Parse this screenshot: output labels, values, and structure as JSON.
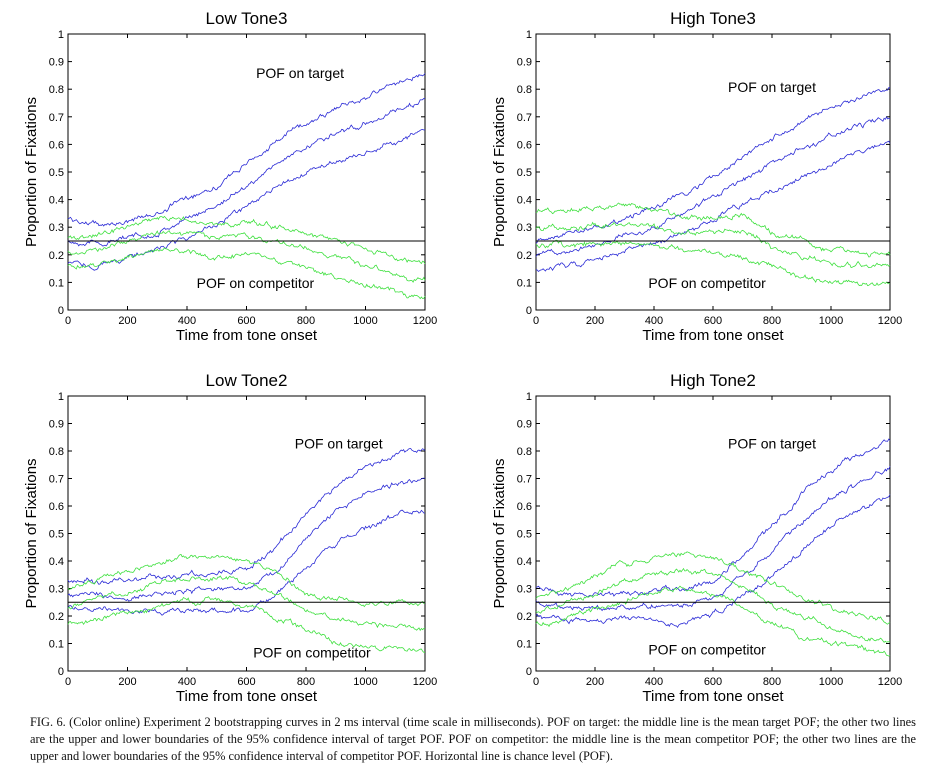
{
  "figure": {
    "caption": "FIG. 6. (Color online) Experiment 2 bootstrapping curves in 2 ms interval (time scale in milliseconds). POF on target: the middle line is the mean target POF; the other two lines are the upper and lower boundaries of the 95% confidence interval of target POF. POF on competitor: the middle line is the mean competitor POF; the other two lines are the upper and lower boundaries of the 95% confidence interval of competitor POF. Horizontal line is chance level (POF)."
  },
  "colors": {
    "target": "#2b2bd6",
    "competitor": "#3fe03f",
    "chance": "#000000",
    "axis": "#000000"
  },
  "chart_data": [
    {
      "type": "line",
      "title": "Low Tone3",
      "xlabel": "Time from tone onset",
      "ylabel": "Proportion of Fixations",
      "xlim": [
        0,
        1200
      ],
      "ylim": [
        0,
        1
      ],
      "xticks": [
        "0",
        "200",
        "400",
        "600",
        "800",
        "1000",
        "1200"
      ],
      "yticks": [
        "0",
        "0.1",
        "0.2",
        "0.3",
        "0.4",
        "0.5",
        "0.6",
        "0.7",
        "0.8",
        "0.9",
        "1"
      ],
      "chance_level": 0.25,
      "annotations": [
        {
          "text": "POF on target",
          "x": 780,
          "y": 0.84
        },
        {
          "text": "POF on competitor",
          "x": 630,
          "y": 0.08
        }
      ],
      "x": [
        0,
        100,
        200,
        300,
        400,
        500,
        600,
        700,
        800,
        900,
        1000,
        1100,
        1200
      ],
      "series": [
        {
          "group": "target",
          "role": "upper",
          "values": [
            0.33,
            0.31,
            0.32,
            0.35,
            0.41,
            0.45,
            0.53,
            0.61,
            0.68,
            0.73,
            0.77,
            0.82,
            0.86
          ]
        },
        {
          "group": "target",
          "role": "mean",
          "values": [
            0.25,
            0.24,
            0.26,
            0.28,
            0.33,
            0.38,
            0.45,
            0.53,
            0.59,
            0.64,
            0.68,
            0.72,
            0.76
          ]
        },
        {
          "group": "target",
          "role": "lower",
          "values": [
            0.17,
            0.16,
            0.19,
            0.22,
            0.26,
            0.31,
            0.37,
            0.44,
            0.5,
            0.54,
            0.57,
            0.61,
            0.66
          ]
        },
        {
          "group": "competitor",
          "role": "upper",
          "values": [
            0.26,
            0.27,
            0.3,
            0.34,
            0.33,
            0.31,
            0.32,
            0.3,
            0.28,
            0.25,
            0.22,
            0.19,
            0.17
          ]
        },
        {
          "group": "competitor",
          "role": "mean",
          "values": [
            0.21,
            0.22,
            0.25,
            0.28,
            0.28,
            0.26,
            0.27,
            0.25,
            0.22,
            0.19,
            0.16,
            0.13,
            0.11
          ]
        },
        {
          "group": "competitor",
          "role": "lower",
          "values": [
            0.16,
            0.17,
            0.19,
            0.22,
            0.21,
            0.19,
            0.2,
            0.18,
            0.15,
            0.12,
            0.09,
            0.07,
            0.05
          ]
        }
      ]
    },
    {
      "type": "line",
      "title": "High Tone3",
      "xlabel": "Time from tone onset",
      "ylabel": "Proportion of Fixations",
      "xlim": [
        0,
        1200
      ],
      "ylim": [
        0,
        1
      ],
      "xticks": [
        "0",
        "200",
        "400",
        "600",
        "800",
        "1000",
        "1200"
      ],
      "yticks": [
        "0",
        "0.1",
        "0.2",
        "0.3",
        "0.4",
        "0.5",
        "0.6",
        "0.7",
        "0.8",
        "0.9",
        "1"
      ],
      "chance_level": 0.25,
      "annotations": [
        {
          "text": "POF on target",
          "x": 800,
          "y": 0.79
        },
        {
          "text": "POF on competitor",
          "x": 580,
          "y": 0.08
        }
      ],
      "x": [
        0,
        100,
        200,
        300,
        400,
        500,
        600,
        700,
        800,
        900,
        1000,
        1100,
        1200
      ],
      "series": [
        {
          "group": "target",
          "role": "upper",
          "values": [
            0.25,
            0.28,
            0.3,
            0.33,
            0.37,
            0.42,
            0.48,
            0.55,
            0.62,
            0.68,
            0.73,
            0.77,
            0.8
          ]
        },
        {
          "group": "target",
          "role": "mean",
          "values": [
            0.2,
            0.22,
            0.24,
            0.27,
            0.3,
            0.35,
            0.41,
            0.47,
            0.53,
            0.58,
            0.63,
            0.67,
            0.7
          ]
        },
        {
          "group": "target",
          "role": "lower",
          "values": [
            0.15,
            0.16,
            0.18,
            0.21,
            0.24,
            0.28,
            0.33,
            0.38,
            0.43,
            0.48,
            0.53,
            0.57,
            0.6
          ]
        },
        {
          "group": "competitor",
          "role": "upper",
          "values": [
            0.36,
            0.36,
            0.37,
            0.38,
            0.36,
            0.33,
            0.33,
            0.35,
            0.28,
            0.25,
            0.22,
            0.21,
            0.2
          ]
        },
        {
          "group": "competitor",
          "role": "mean",
          "values": [
            0.3,
            0.3,
            0.31,
            0.31,
            0.3,
            0.28,
            0.28,
            0.29,
            0.23,
            0.19,
            0.17,
            0.16,
            0.15
          ]
        },
        {
          "group": "competitor",
          "role": "lower",
          "values": [
            0.24,
            0.23,
            0.24,
            0.24,
            0.24,
            0.22,
            0.21,
            0.19,
            0.16,
            0.12,
            0.1,
            0.1,
            0.09
          ]
        }
      ]
    },
    {
      "type": "line",
      "title": "Low Tone2",
      "xlabel": "Time from tone onset",
      "ylabel": "Proportion of Fixations",
      "xlim": [
        0,
        1200
      ],
      "ylim": [
        0,
        1
      ],
      "xticks": [
        "0",
        "200",
        "400",
        "600",
        "800",
        "1000",
        "1200"
      ],
      "yticks": [
        "0",
        "0.1",
        "0.2",
        "0.3",
        "0.4",
        "0.5",
        "0.6",
        "0.7",
        "0.8",
        "0.9",
        "1"
      ],
      "chance_level": 0.25,
      "annotations": [
        {
          "text": "POF on target",
          "x": 910,
          "y": 0.81
        },
        {
          "text": "POF on competitor",
          "x": 820,
          "y": 0.05
        }
      ],
      "x": [
        0,
        100,
        200,
        300,
        400,
        500,
        600,
        700,
        800,
        900,
        1000,
        1100,
        1200
      ],
      "series": [
        {
          "group": "target",
          "role": "upper",
          "values": [
            0.33,
            0.32,
            0.33,
            0.34,
            0.35,
            0.36,
            0.37,
            0.45,
            0.57,
            0.67,
            0.74,
            0.79,
            0.81
          ]
        },
        {
          "group": "target",
          "role": "mean",
          "values": [
            0.28,
            0.27,
            0.27,
            0.28,
            0.29,
            0.29,
            0.3,
            0.36,
            0.48,
            0.58,
            0.64,
            0.68,
            0.7
          ]
        },
        {
          "group": "target",
          "role": "lower",
          "values": [
            0.23,
            0.23,
            0.22,
            0.22,
            0.22,
            0.22,
            0.22,
            0.28,
            0.38,
            0.47,
            0.52,
            0.57,
            0.59
          ]
        },
        {
          "group": "competitor",
          "role": "upper",
          "values": [
            0.3,
            0.33,
            0.36,
            0.39,
            0.42,
            0.42,
            0.4,
            0.36,
            0.28,
            0.26,
            0.25,
            0.25,
            0.24
          ]
        },
        {
          "group": "competitor",
          "role": "mean",
          "values": [
            0.23,
            0.26,
            0.29,
            0.32,
            0.33,
            0.34,
            0.32,
            0.28,
            0.22,
            0.19,
            0.17,
            0.16,
            0.15
          ]
        },
        {
          "group": "competitor",
          "role": "lower",
          "values": [
            0.17,
            0.19,
            0.21,
            0.23,
            0.25,
            0.26,
            0.24,
            0.2,
            0.15,
            0.11,
            0.09,
            0.08,
            0.07
          ]
        }
      ]
    },
    {
      "type": "line",
      "title": "High Tone2",
      "xlabel": "Time from tone onset",
      "ylabel": "Proportion of Fixations",
      "xlim": [
        0,
        1200
      ],
      "ylim": [
        0,
        1
      ],
      "xticks": [
        "0",
        "200",
        "400",
        "600",
        "800",
        "1000",
        "1200"
      ],
      "yticks": [
        "0",
        "0.1",
        "0.2",
        "0.3",
        "0.4",
        "0.5",
        "0.6",
        "0.7",
        "0.8",
        "0.9",
        "1"
      ],
      "chance_level": 0.25,
      "annotations": [
        {
          "text": "POF on target",
          "x": 800,
          "y": 0.81
        },
        {
          "text": "POF on competitor",
          "x": 580,
          "y": 0.06
        }
      ],
      "x": [
        0,
        100,
        200,
        300,
        400,
        500,
        600,
        700,
        800,
        900,
        1000,
        1100,
        1200
      ],
      "series": [
        {
          "group": "target",
          "role": "upper",
          "values": [
            0.3,
            0.28,
            0.27,
            0.28,
            0.29,
            0.3,
            0.33,
            0.42,
            0.53,
            0.64,
            0.73,
            0.79,
            0.85
          ]
        },
        {
          "group": "target",
          "role": "mean",
          "values": [
            0.25,
            0.23,
            0.22,
            0.23,
            0.24,
            0.24,
            0.27,
            0.34,
            0.44,
            0.54,
            0.63,
            0.69,
            0.74
          ]
        },
        {
          "group": "target",
          "role": "lower",
          "values": [
            0.2,
            0.18,
            0.18,
            0.19,
            0.19,
            0.17,
            0.21,
            0.27,
            0.35,
            0.44,
            0.53,
            0.59,
            0.64
          ]
        },
        {
          "group": "competitor",
          "role": "upper",
          "values": [
            0.26,
            0.29,
            0.34,
            0.39,
            0.42,
            0.43,
            0.41,
            0.37,
            0.32,
            0.27,
            0.23,
            0.2,
            0.18
          ]
        },
        {
          "group": "competitor",
          "role": "mean",
          "values": [
            0.21,
            0.24,
            0.28,
            0.32,
            0.35,
            0.37,
            0.35,
            0.31,
            0.25,
            0.2,
            0.16,
            0.13,
            0.11
          ]
        },
        {
          "group": "competitor",
          "role": "lower",
          "values": [
            0.17,
            0.19,
            0.22,
            0.25,
            0.28,
            0.3,
            0.28,
            0.24,
            0.18,
            0.13,
            0.1,
            0.08,
            0.06
          ]
        }
      ]
    }
  ]
}
